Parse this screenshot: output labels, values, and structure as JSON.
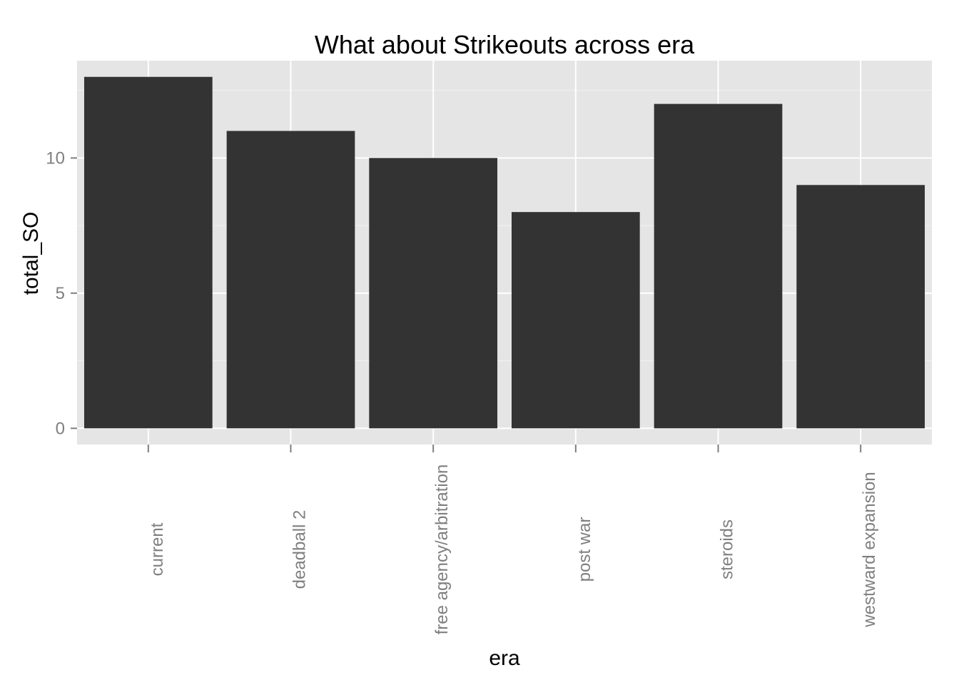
{
  "chart_data": {
    "type": "bar",
    "title": "What about Strikeouts across era",
    "xlabel": "era",
    "ylabel": "total_SO",
    "categories": [
      "current",
      "deadball 2",
      "free agency/arbitration",
      "post war",
      "steroids",
      "westward expansion"
    ],
    "values": [
      13,
      11,
      10,
      8,
      12,
      9
    ],
    "ylim": [
      -0.6,
      13.6
    ],
    "yticks": [
      0,
      5,
      10
    ],
    "ytick_labels": [
      "0",
      "5",
      "10"
    ],
    "grid": true,
    "legend": "none",
    "colors": {
      "bar": "#333333",
      "panel": "#e5e5e5",
      "grid_major": "#ffffff",
      "grid_minor": "#f2f2f2",
      "tick_label": "#7f7f7f",
      "text": "#000000"
    }
  }
}
